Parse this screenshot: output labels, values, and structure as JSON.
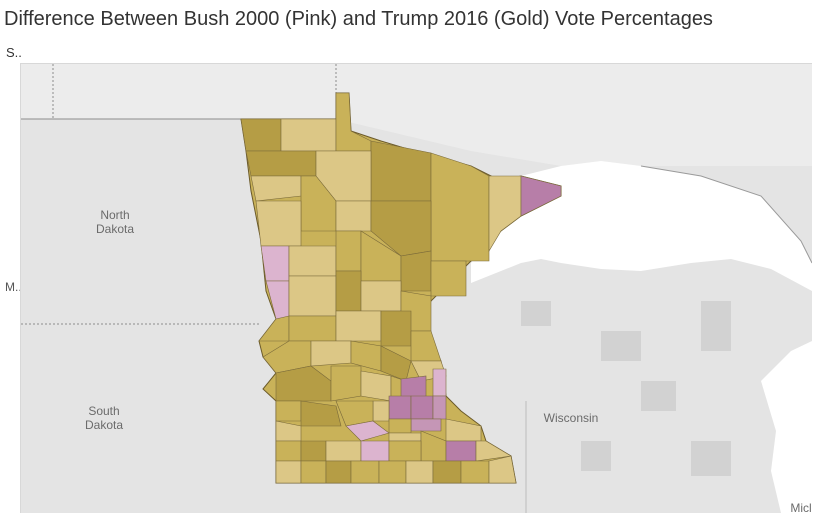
{
  "title": "Difference Between Bush 2000 (Pink) and Trump 2016 (Gold) Vote Percentages",
  "subtitle": "S..",
  "axis_label_left": "M..",
  "map": {
    "region": "Minnesota",
    "legend_colors": {
      "pink": "#c596b6",
      "gold": "#c9b050"
    },
    "labels": {
      "north_dakota_1": "North",
      "north_dakota_2": "Dakota",
      "south_dakota_1": "South",
      "south_dakota_2": "Dakota",
      "wisconsin": "Wisconsin",
      "michigan_partial": "Micl"
    }
  },
  "colors": {
    "land": "#e4e4e4",
    "water": "#ffffff",
    "gold_dark": "#b59d45",
    "gold_mid": "#c9b259",
    "gold_light": "#dcc786",
    "pink_dark": "#b77ea8",
    "pink_light": "#dcb4cf"
  }
}
